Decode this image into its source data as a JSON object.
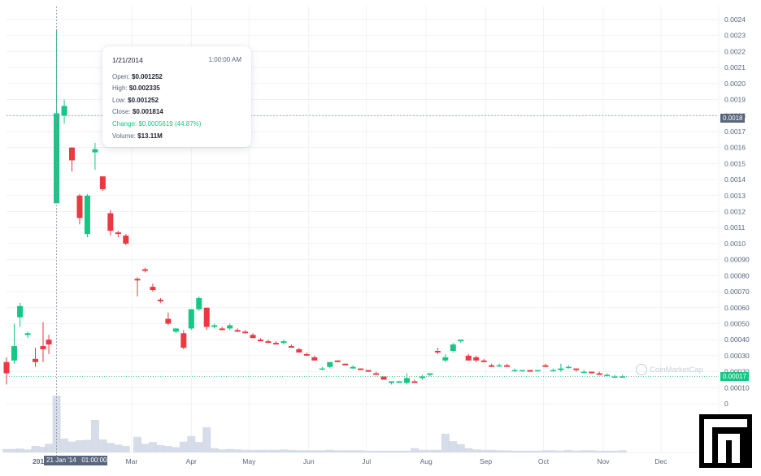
{
  "chart_data": {
    "type": "candlestick",
    "y_axis": {
      "ticks": [
        "0.0024",
        "0.0023",
        "0.0022",
        "0.0021",
        "0.0020",
        "0.0019",
        "0.0018",
        "0.0017",
        "0.0016",
        "0.0015",
        "0.0014",
        "0.0013",
        "0.0012",
        "0.0011",
        "0.0010",
        "0.00090",
        "0.00080",
        "0.00070",
        "0.00060",
        "0.00050",
        "0.00040",
        "0.00030",
        "0.00020",
        "0.00010",
        "0"
      ],
      "range": [
        0,
        0.0024
      ],
      "position": "right"
    },
    "x_axis": {
      "labels": [
        "Mar",
        "Apr",
        "May",
        "Jun",
        "Jul",
        "Aug",
        "Sep",
        "Oct",
        "Nov",
        "Dec"
      ],
      "first_label": "201",
      "range": [
        "2013-12-26",
        "2014-12-31"
      ]
    },
    "grid": true,
    "candles": [
      {
        "d": "2013-12-26",
        "o": 0.00026,
        "h": 0.00029,
        "l": 0.00012,
        "c": 0.00019
      },
      {
        "d": "2013-12-30",
        "o": 0.00027,
        "h": 0.0005,
        "l": 0.00025,
        "c": 0.00036
      },
      {
        "d": "2014-01-02",
        "o": 0.00054,
        "h": 0.00063,
        "l": 0.00048,
        "c": 0.00061
      },
      {
        "d": "2014-01-06",
        "o": 0.00043,
        "h": 0.00045,
        "l": 0.00041,
        "c": 0.00044
      },
      {
        "d": "2014-01-10",
        "o": 0.00028,
        "h": 0.00035,
        "l": 0.00023,
        "c": 0.00026
      },
      {
        "d": "2014-01-14",
        "o": 0.00036,
        "h": 0.00051,
        "l": 0.00026,
        "c": 0.00034
      },
      {
        "d": "2014-01-17",
        "o": 0.0004,
        "h": 0.00043,
        "l": 0.00031,
        "c": 0.00037
      },
      {
        "d": "2014-01-21",
        "o": 0.001252,
        "h": 0.002335,
        "l": 0.001252,
        "c": 0.001814
      },
      {
        "d": "2014-01-25",
        "o": 0.0018,
        "h": 0.0019,
        "l": 0.00175,
        "c": 0.00186
      },
      {
        "d": "2014-01-29",
        "o": 0.0016,
        "h": 0.0016,
        "l": 0.00145,
        "c": 0.00152
      },
      {
        "d": "2014-02-02",
        "o": 0.0013,
        "h": 0.00131,
        "l": 0.00112,
        "c": 0.00116
      },
      {
        "d": "2014-02-06",
        "o": 0.00106,
        "h": 0.00131,
        "l": 0.00104,
        "c": 0.0013
      },
      {
        "d": "2014-02-10",
        "o": 0.00157,
        "h": 0.00163,
        "l": 0.00146,
        "c": 0.00159
      },
      {
        "d": "2014-02-14",
        "o": 0.00142,
        "h": 0.00142,
        "l": 0.00133,
        "c": 0.00134
      },
      {
        "d": "2014-02-18",
        "o": 0.00119,
        "h": 0.00121,
        "l": 0.00105,
        "c": 0.00108
      },
      {
        "d": "2014-02-22",
        "o": 0.00107,
        "h": 0.00108,
        "l": 0.00104,
        "c": 0.00106
      },
      {
        "d": "2014-02-26",
        "o": 0.00105,
        "h": 0.00106,
        "l": 0.00099,
        "c": 0.001
      },
      {
        "d": "2014-03-04",
        "o": 0.00078,
        "h": 0.00079,
        "l": 0.00067,
        "c": 0.00077
      },
      {
        "d": "2014-03-08",
        "o": 0.00084,
        "h": 0.00085,
        "l": 0.00082,
        "c": 0.00083
      },
      {
        "d": "2014-03-12",
        "o": 0.00073,
        "h": 0.00075,
        "l": 0.0007,
        "c": 0.00071
      },
      {
        "d": "2014-03-16",
        "o": 0.00065,
        "h": 0.00066,
        "l": 0.00063,
        "c": 0.00064
      },
      {
        "d": "2014-03-20",
        "o": 0.00053,
        "h": 0.00057,
        "l": 0.00049,
        "c": 0.0005
      },
      {
        "d": "2014-03-24",
        "o": 0.00045,
        "h": 0.00047,
        "l": 0.00044,
        "c": 0.00047
      },
      {
        "d": "2014-03-28",
        "o": 0.00044,
        "h": 0.00046,
        "l": 0.00034,
        "c": 0.00035
      },
      {
        "d": "2014-04-01",
        "o": 0.00047,
        "h": 0.00059,
        "l": 0.00046,
        "c": 0.00059
      },
      {
        "d": "2014-04-05",
        "o": 0.00059,
        "h": 0.00067,
        "l": 0.00058,
        "c": 0.00066
      },
      {
        "d": "2014-04-09",
        "o": 0.0006,
        "h": 0.0006,
        "l": 0.00046,
        "c": 0.00048
      },
      {
        "d": "2014-04-13",
        "o": 0.00048,
        "h": 0.0005,
        "l": 0.00047,
        "c": 0.00049
      },
      {
        "d": "2014-04-17",
        "o": 0.00047,
        "h": 0.00048,
        "l": 0.00046,
        "c": 0.00046
      },
      {
        "d": "2014-04-21",
        "o": 0.00047,
        "h": 0.0005,
        "l": 0.00046,
        "c": 0.00049
      },
      {
        "d": "2014-04-25",
        "o": 0.00046,
        "h": 0.00047,
        "l": 0.00045,
        "c": 0.00045
      },
      {
        "d": "2014-04-29",
        "o": 0.00045,
        "h": 0.00046,
        "l": 0.00044,
        "c": 0.00044
      },
      {
        "d": "2014-05-03",
        "o": 0.00043,
        "h": 0.00044,
        "l": 0.00041,
        "c": 0.00041
      },
      {
        "d": "2014-05-07",
        "o": 0.0004,
        "h": 0.00041,
        "l": 0.00039,
        "c": 0.00039
      },
      {
        "d": "2014-05-11",
        "o": 0.00039,
        "h": 0.0004,
        "l": 0.00038,
        "c": 0.00038
      },
      {
        "d": "2014-05-15",
        "o": 0.00038,
        "h": 0.00039,
        "l": 0.00037,
        "c": 0.00037
      },
      {
        "d": "2014-05-19",
        "o": 0.00038,
        "h": 0.0004,
        "l": 0.00037,
        "c": 0.00039
      },
      {
        "d": "2014-05-23",
        "o": 0.00036,
        "h": 0.00037,
        "l": 0.00035,
        "c": 0.00035
      },
      {
        "d": "2014-05-27",
        "o": 0.00034,
        "h": 0.00035,
        "l": 0.00032,
        "c": 0.00032
      },
      {
        "d": "2014-05-31",
        "o": 0.00031,
        "h": 0.00032,
        "l": 0.0003,
        "c": 0.0003
      },
      {
        "d": "2014-06-04",
        "o": 0.00029,
        "h": 0.0003,
        "l": 0.00027,
        "c": 0.00027
      },
      {
        "d": "2014-06-08",
        "o": 0.00022,
        "h": 0.00023,
        "l": 0.00021,
        "c": 0.00022
      },
      {
        "d": "2014-06-12",
        "o": 0.00023,
        "h": 0.00026,
        "l": 0.00022,
        "c": 0.00026
      },
      {
        "d": "2014-06-16",
        "o": 0.00027,
        "h": 0.00027,
        "l": 0.00026,
        "c": 0.00026
      },
      {
        "d": "2014-06-20",
        "o": 0.00025,
        "h": 0.00025,
        "l": 0.00024,
        "c": 0.00024
      },
      {
        "d": "2014-06-24",
        "o": 0.00022,
        "h": 0.00024,
        "l": 0.00022,
        "c": 0.00023
      },
      {
        "d": "2014-06-28",
        "o": 0.00022,
        "h": 0.00022,
        "l": 0.00021,
        "c": 0.00021
      },
      {
        "d": "2014-07-02",
        "o": 0.00021,
        "h": 0.00021,
        "l": 0.0002,
        "c": 0.0002
      },
      {
        "d": "2014-07-06",
        "o": 0.00019,
        "h": 0.0002,
        "l": 0.00018,
        "c": 0.00018
      },
      {
        "d": "2014-07-10",
        "o": 0.00017,
        "h": 0.00017,
        "l": 0.00015,
        "c": 0.00015
      },
      {
        "d": "2014-07-14",
        "o": 0.00013,
        "h": 0.00014,
        "l": 0.00012,
        "c": 0.00014
      },
      {
        "d": "2014-07-18",
        "o": 0.00013,
        "h": 0.00014,
        "l": 0.00013,
        "c": 0.00014
      },
      {
        "d": "2014-07-22",
        "o": 0.00013,
        "h": 0.00019,
        "l": 0.00012,
        "c": 0.00016
      },
      {
        "d": "2014-07-26",
        "o": 0.00014,
        "h": 0.00015,
        "l": 0.00013,
        "c": 0.00013
      },
      {
        "d": "2014-07-30",
        "o": 0.00016,
        "h": 0.00018,
        "l": 0.00015,
        "c": 0.00017
      },
      {
        "d": "2014-08-03",
        "o": 0.00018,
        "h": 0.00019,
        "l": 0.00017,
        "c": 0.00019
      },
      {
        "d": "2014-08-07",
        "o": 0.00033,
        "h": 0.00035,
        "l": 0.00031,
        "c": 0.00032
      },
      {
        "d": "2014-08-11",
        "o": 0.00027,
        "h": 0.00031,
        "l": 0.00026,
        "c": 0.00029
      },
      {
        "d": "2014-08-15",
        "o": 0.00033,
        "h": 0.00038,
        "l": 0.00032,
        "c": 0.00037
      },
      {
        "d": "2014-08-19",
        "o": 0.00039,
        "h": 0.0004,
        "l": 0.00038,
        "c": 0.0004
      },
      {
        "d": "2014-08-23",
        "o": 0.0003,
        "h": 0.00031,
        "l": 0.00027,
        "c": 0.00027
      },
      {
        "d": "2014-08-27",
        "o": 0.00029,
        "h": 0.0003,
        "l": 0.00026,
        "c": 0.00027
      },
      {
        "d": "2014-08-31",
        "o": 0.00027,
        "h": 0.00028,
        "l": 0.00026,
        "c": 0.00026
      },
      {
        "d": "2014-09-04",
        "o": 0.00024,
        "h": 0.00025,
        "l": 0.00023,
        "c": 0.00023
      },
      {
        "d": "2014-09-08",
        "o": 0.00024,
        "h": 0.00025,
        "l": 0.00023,
        "c": 0.00024
      },
      {
        "d": "2014-09-12",
        "o": 0.00024,
        "h": 0.00025,
        "l": 0.00023,
        "c": 0.00023
      },
      {
        "d": "2014-09-16",
        "o": 0.00021,
        "h": 0.00022,
        "l": 0.0002,
        "c": 0.00021
      },
      {
        "d": "2014-09-20",
        "o": 0.00021,
        "h": 0.00021,
        "l": 0.0002,
        "c": 0.00021
      },
      {
        "d": "2014-09-24",
        "o": 0.00021,
        "h": 0.00021,
        "l": 0.0002,
        "c": 0.0002
      },
      {
        "d": "2014-09-28",
        "o": 0.00021,
        "h": 0.00021,
        "l": 0.0002,
        "c": 0.00021
      },
      {
        "d": "2014-10-02",
        "o": 0.00024,
        "h": 0.00025,
        "l": 0.00023,
        "c": 0.00023
      },
      {
        "d": "2014-10-06",
        "o": 0.00021,
        "h": 0.00022,
        "l": 0.0002,
        "c": 0.00021
      },
      {
        "d": "2014-10-10",
        "o": 0.00021,
        "h": 0.00025,
        "l": 0.0002,
        "c": 0.00022
      },
      {
        "d": "2014-10-14",
        "o": 0.00023,
        "h": 0.00024,
        "l": 0.00022,
        "c": 0.00023
      },
      {
        "d": "2014-10-18",
        "o": 0.00022,
        "h": 0.00022,
        "l": 0.0002,
        "c": 0.00021
      },
      {
        "d": "2014-10-22",
        "o": 0.0002,
        "h": 0.00021,
        "l": 0.00019,
        "c": 0.0002
      },
      {
        "d": "2014-10-26",
        "o": 0.0002,
        "h": 0.0002,
        "l": 0.00019,
        "c": 0.00019
      },
      {
        "d": "2014-10-30",
        "o": 0.00019,
        "h": 0.0002,
        "l": 0.00018,
        "c": 0.00018
      },
      {
        "d": "2014-11-03",
        "o": 0.00018,
        "h": 0.00019,
        "l": 0.00017,
        "c": 0.00018
      },
      {
        "d": "2014-11-07",
        "o": 0.00017,
        "h": 0.00018,
        "l": 0.00017,
        "c": 0.00017
      },
      {
        "d": "2014-11-11",
        "o": 0.00017,
        "h": 0.00018,
        "l": 0.00017,
        "c": 0.00017
      }
    ],
    "volume": {
      "values_millions": [
        0.8,
        0.8,
        0.9,
        0.7,
        1.5,
        1.3,
        2.0,
        13.11,
        3.2,
        2.5,
        2.8,
        2.9,
        7.5,
        3.0,
        2.2,
        1.8,
        1.5,
        3.6,
        2.0,
        2.4,
        1.7,
        1.5,
        1.2,
        2.5,
        3.8,
        2.4,
        5.8,
        1.0,
        0.7,
        0.8,
        0.7,
        0.6,
        0.6,
        0.6,
        0.6,
        0.6,
        0.7,
        0.6,
        0.5,
        0.5,
        0.5,
        0.5,
        0.6,
        0.5,
        0.5,
        0.5,
        0.5,
        0.4,
        0.4,
        0.4,
        0.4,
        0.4,
        0.4,
        1.0,
        0.6,
        0.6,
        0.6,
        4.3,
        2.6,
        1.9,
        1.0,
        0.7,
        0.6,
        0.6,
        0.5,
        0.5,
        0.4,
        0.4,
        0.4,
        0.4,
        0.5,
        0.5,
        0.4,
        0.6,
        0.4,
        0.5,
        0.5,
        0.4,
        0.4,
        0.4,
        0.5
      ],
      "max_millions": 15
    },
    "crosshair": {
      "date": "2014-01-21",
      "price": 0.0018
    },
    "last_price": 0.00017,
    "colors": {
      "up": "#16c784",
      "down": "#ea3943",
      "volume": "#cfd6e4",
      "grid": "#eff2f5"
    }
  },
  "tooltip": {
    "date": "1/21/2014",
    "time": "1:00:00 AM",
    "open_label": "Open:",
    "open": "$0.001252",
    "high_label": "High:",
    "high": "$0.002335",
    "low_label": "Low:",
    "low": "$0.001252",
    "close_label": "Close:",
    "close": "$0.001814",
    "change_label": "Change:",
    "change": "$0.0005619 (44.87%)",
    "volume_label": "Volume:",
    "volume": "$13.11M"
  },
  "crosshair_labels": {
    "x_label": "21 Jan '14   01:00:00",
    "y_label": "0.0018",
    "last_label": "0.00017"
  },
  "watermark": "CoinMarketCap"
}
